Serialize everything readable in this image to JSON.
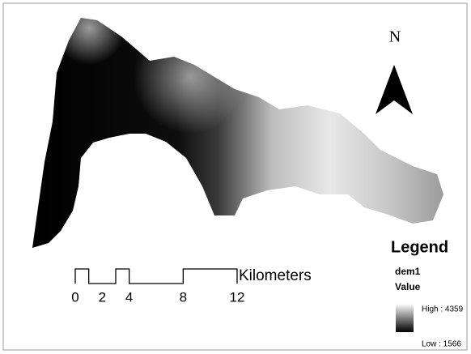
{
  "north_arrow": {
    "label": "N"
  },
  "scale_bar": {
    "unit": "Kilometers",
    "ticks": [
      0,
      2,
      4,
      8,
      12
    ]
  },
  "legend": {
    "title": "Legend",
    "layer": "dem1",
    "field": "Value",
    "high": "High : 4359",
    "low": "Low : 1566"
  }
}
